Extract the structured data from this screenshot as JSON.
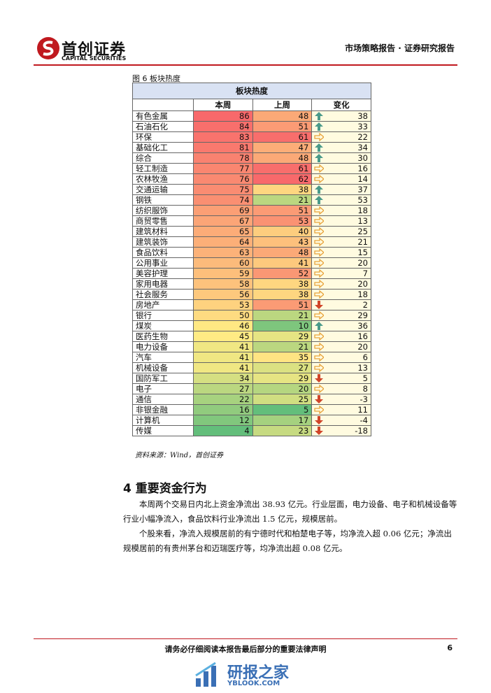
{
  "header": {
    "logo": "首创证券",
    "logo_en": "CAPITAL SECURITIES",
    "report_type": "市场策略报告 · 证券研究报告"
  },
  "figure": {
    "caption": "图 6 板块热度",
    "source": "资料来源：Wind，首创证券"
  },
  "table": {
    "title": "板块热度",
    "columns": [
      "本周",
      "上周",
      "变化"
    ],
    "rows": [
      [
        "有色金属",
        86,
        48,
        38
      ],
      [
        "石油石化",
        84,
        51,
        33
      ],
      [
        "环保",
        83,
        61,
        22
      ],
      [
        "基础化工",
        81,
        47,
        34
      ],
      [
        "综合",
        78,
        48,
        30
      ],
      [
        "轻工制造",
        77,
        61,
        16
      ],
      [
        "农林牧渔",
        76,
        62,
        14
      ],
      [
        "交通运输",
        75,
        38,
        37
      ],
      [
        "钢铁",
        74,
        21,
        53
      ],
      [
        "纺织服饰",
        69,
        51,
        18
      ],
      [
        "商贸零售",
        67,
        53,
        13
      ],
      [
        "建筑材料",
        65,
        40,
        25
      ],
      [
        "建筑装饰",
        64,
        43,
        21
      ],
      [
        "食品饮料",
        63,
        48,
        15
      ],
      [
        "公用事业",
        60,
        41,
        20
      ],
      [
        "美容护理",
        59,
        52,
        7
      ],
      [
        "家用电器",
        58,
        38,
        20
      ],
      [
        "社会服务",
        56,
        38,
        18
      ],
      [
        "房地产",
        53,
        51,
        2
      ],
      [
        "银行",
        50,
        21,
        29
      ],
      [
        "煤炭",
        46,
        10,
        36
      ],
      [
        "医药生物",
        45,
        29,
        16
      ],
      [
        "电力设备",
        41,
        21,
        20
      ],
      [
        "汽车",
        41,
        35,
        6
      ],
      [
        "机械设备",
        41,
        27,
        13
      ],
      [
        "国防军工",
        34,
        29,
        5
      ],
      [
        "电子",
        27,
        20,
        8
      ],
      [
        "通信",
        22,
        25,
        -3
      ],
      [
        "非银金融",
        16,
        5,
        11
      ],
      [
        "计算机",
        12,
        17,
        -4
      ],
      [
        "传媒",
        4,
        23,
        -18
      ]
    ]
  },
  "section": {
    "heading": "4 重要资金行为",
    "paragraphs": [
      "本周两个交易日内北上资金净流出 38.93 亿元。行业层面，电力设备、电子和机械设备等行业小幅净流入，食品饮料行业净流出 1.5 亿元，规模居前。",
      "个股来看，净流入规模居前的有宁德时代和柏楚电子等，均净流入超 0.06 亿元；净流出规模居前的有贵州茅台和迈瑞医疗等，均净流出超 0.08 亿元。"
    ]
  },
  "footer": {
    "disclaimer": "请务必仔细阅读本报告最后部分的重要法律声明",
    "page": "6"
  },
  "watermark": {
    "cn": "研报之家",
    "en": "YBLOOK.COM"
  }
}
